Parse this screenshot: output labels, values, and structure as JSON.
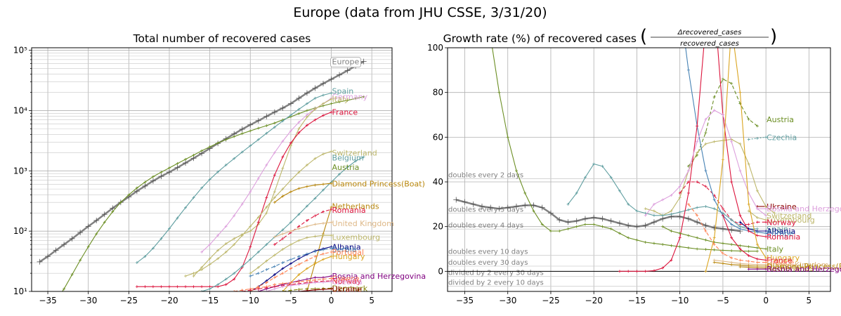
{
  "suptitle": "Europe (data from JHU CSSE, 3/31/20)",
  "chart_data": [
    {
      "id": "left",
      "type": "line",
      "title": "Total number of recovered cases",
      "yscale": "log",
      "xlim": [
        -37,
        7.5
      ],
      "ylim": [
        10,
        110000
      ],
      "xticks": [
        -35,
        -30,
        -25,
        -20,
        -15,
        -10,
        -5,
        0,
        5
      ],
      "yticks": [
        {
          "v": 10,
          "label": "10¹"
        },
        {
          "v": 100,
          "label": "10²"
        },
        {
          "v": 1000,
          "label": "10³"
        },
        {
          "v": 10000,
          "label": "10⁴"
        },
        {
          "v": 100000,
          "label": "10⁵"
        }
      ],
      "series": [
        {
          "name": "Europe",
          "color": "#808080",
          "width": 2.5,
          "boxed": true,
          "label_y": 65000,
          "x0": -36,
          "values": [
            31,
            38,
            48,
            60,
            75,
            95,
            120,
            150,
            190,
            240,
            300,
            370,
            460,
            560,
            680,
            810,
            950,
            1130,
            1350,
            1620,
            1950,
            2350,
            2850,
            3400,
            4100,
            4900,
            5800,
            6800,
            8000,
            9400,
            11000,
            13000,
            16000,
            19500,
            23500,
            28000,
            33000,
            39000,
            46000,
            55000,
            65000
          ]
        },
        {
          "name": "Austria",
          "color": "#6b8e23",
          "label_y": 1150,
          "x0": -34,
          "values": [
            7,
            11,
            19,
            33,
            55,
            90,
            140,
            210,
            300,
            400,
            520,
            650,
            800,
            950,
            1120,
            1320,
            1550,
            1820,
            2150,
            2500,
            2900,
            3300,
            3700,
            4150,
            4600,
            5100,
            5600,
            6200,
            7000,
            7900,
            8900,
            10000,
            11000,
            12000,
            13000,
            13900,
            14800,
            15800,
            17000
          ]
        },
        {
          "name": "Spain",
          "color": "#5f9ea0",
          "label_y": 21000,
          "x0": -24,
          "values": [
            30,
            38,
            52,
            75,
            110,
            165,
            245,
            360,
            520,
            720,
            960,
            1250,
            1600,
            2050,
            2600,
            3300,
            4200,
            5300,
            6700,
            8400,
            10500,
            13000,
            16000,
            18000,
            19500
          ]
        },
        {
          "name": "Germany",
          "color": "#dda0dd",
          "label_y": 17000,
          "x0": -16,
          "values": [
            45,
            60,
            85,
            120,
            180,
            280,
            450,
            750,
            1250,
            2000,
            3100,
            4600,
            6400,
            8500,
            10700,
            13000,
            16000
          ]
        },
        {
          "name": "Italy",
          "color": "#bdb76b",
          "label_y": 15500,
          "x0": -17,
          "values": [
            18,
            25,
            35,
            48,
            62,
            75,
            88,
            100,
            130,
            200,
            450,
            1100,
            2600,
            5000,
            7800,
            10500,
            13000,
            15500
          ]
        },
        {
          "name": "France",
          "color": "#dc143c",
          "label_y": 9500,
          "x0": -24,
          "values": [
            12,
            12,
            12,
            12,
            12,
            12,
            12,
            12,
            12,
            12,
            12,
            13,
            16,
            25,
            55,
            140,
            360,
            850,
            1700,
            2900,
            4300,
            5700,
            7000,
            8300,
            9400
          ]
        },
        {
          "name": "Switzerland",
          "color": "#bdb76b",
          "label_y": 2000,
          "x0": -18,
          "values": [
            18,
            20,
            23,
            28,
            35,
            45,
            60,
            85,
            120,
            170,
            250,
            360,
            500,
            700,
            950,
            1250,
            1600,
            1900,
            2100
          ]
        },
        {
          "name": "Belgium",
          "color": "#5f9ea0",
          "label_y": 1650,
          "x0": -16,
          "values": [
            10,
            11,
            13,
            16,
            20,
            26,
            34,
            45,
            60,
            80,
            105,
            140,
            190,
            260,
            350,
            480,
            650,
            880,
            1150,
            1450,
            1700
          ]
        },
        {
          "name": "Diamond Princess(Boat)",
          "color": "#b8860b",
          "label_y": 610,
          "x0": -7,
          "values": [
            300,
            380,
            450,
            510,
            550,
            580,
            600,
            620
          ]
        },
        {
          "name": "Netherlands",
          "color": "#b8860b",
          "label_y": 260,
          "x0": -3,
          "values": [
            10,
            30,
            90,
            250
          ]
        },
        {
          "name": "Romania",
          "color": "#dc143c",
          "dash": "5,3",
          "label_y": 225,
          "x0": -7,
          "values": [
            60,
            75,
            95,
            120,
            150,
            180,
            210,
            230
          ]
        },
        {
          "name": "United Kingdom",
          "color": "#deb887",
          "label_y": 135,
          "x0": -7,
          "values": [
            80,
            90,
            100,
            110,
            120,
            130,
            135,
            140
          ]
        },
        {
          "name": "Luxembourg",
          "color": "#bdb76b",
          "label_y": 80,
          "x0": -10,
          "values": [
            20,
            25,
            32,
            40,
            50,
            60,
            70,
            78,
            82,
            85,
            85
          ]
        },
        {
          "name": "Albania",
          "color": "#000080",
          "label_y": 55,
          "x0": -10,
          "values": [
            10,
            12,
            15,
            19,
            24,
            29,
            35,
            41,
            47,
            51,
            55
          ]
        },
        {
          "name": "Serbia",
          "color": "#4682b4",
          "dash": "5,3",
          "label_y": 50,
          "x0": -10,
          "values": [
            18,
            20,
            23,
            26,
            30,
            34,
            38,
            42,
            46,
            49,
            52
          ]
        },
        {
          "name": "Portugal",
          "color": "#ff7f50",
          "dash": "5,3",
          "label_y": 45,
          "x0": -10,
          "values": [
            10,
            12,
            14,
            17,
            20,
            24,
            28,
            33,
            38,
            42,
            45
          ]
        },
        {
          "name": "Hungary",
          "color": "#daa520",
          "label_y": 38,
          "x0": -6,
          "values": [
            10,
            14,
            19,
            24,
            29,
            34,
            38
          ]
        },
        {
          "name": "Bosnia and Herzegovina",
          "color": "#800080",
          "label_y": 18,
          "x0": -9,
          "values": [
            10,
            11,
            12,
            13,
            14,
            15,
            16,
            17,
            17,
            18
          ]
        },
        {
          "name": "Greece",
          "color": "#ff7f50",
          "dash": "5,3",
          "label_y": 16.5,
          "x0": -12,
          "values": [
            10,
            10.5,
            11,
            11.5,
            12,
            13,
            13.5,
            14,
            14.5,
            15,
            15.5,
            16,
            16.5
          ]
        },
        {
          "name": "Norway",
          "color": "#dc143c",
          "dash": "5,3",
          "label_y": 15,
          "x0": -11,
          "values": [
            10,
            10.5,
            11,
            11.5,
            12,
            12.5,
            13,
            13.5,
            14,
            14.5,
            14.8,
            15
          ]
        },
        {
          "name": "Czechia",
          "color": "#dda0dd",
          "label_y": 14.5,
          "x0": -8,
          "values": [
            10,
            11,
            12,
            12.5,
            13,
            13.5,
            14,
            14.2,
            14.5
          ]
        },
        {
          "name": "Denmark",
          "color": "#808000",
          "dash": "5,3",
          "label_y": 11.3,
          "x0": -6,
          "values": [
            10,
            10.4,
            10.8,
            11,
            11.1,
            11.2,
            11.3
          ]
        },
        {
          "name": "Ukraine",
          "color": "#8b0000",
          "label_y": 11,
          "x0": -4,
          "values": [
            10,
            10.3,
            10.6,
            10.8,
            11
          ]
        }
      ]
    },
    {
      "id": "right",
      "type": "line",
      "title": "Growth rate (%) of recovered cases",
      "title_formula_num": "Δrecovered_cases",
      "title_formula_den": "recovered_cases",
      "xlim": [
        -37,
        7.5
      ],
      "ylim": [
        -9,
        100
      ],
      "xticks": [
        -35,
        -30,
        -25,
        -20,
        -15,
        -10,
        -5,
        0,
        5
      ],
      "yticks": [
        0,
        20,
        40,
        60,
        80,
        100
      ],
      "reference_lines": [
        {
          "label": "doubles every 2 days",
          "y": 41.4
        },
        {
          "label": "doubles every 3 days",
          "y": 26.0
        },
        {
          "label": "doubles every 4 days",
          "y": 18.9
        },
        {
          "label": "doubles every 10 days",
          "y": 7.2
        },
        {
          "label": "doubles every 30 days",
          "y": 2.3
        },
        {
          "label": "divided by 2 every 30 days",
          "y": -2.3
        },
        {
          "label": "divided by 2 every 10 days",
          "y": -6.7
        }
      ],
      "series": [
        {
          "name": "Europe",
          "color": "#808080",
          "width": 2.5,
          "x0": -36,
          "values": [
            32,
            31,
            30,
            29,
            28.5,
            28,
            28.5,
            29,
            29.5,
            29.5,
            28.5,
            26,
            23,
            22,
            22.5,
            23.5,
            24,
            23.5,
            22.5,
            21.5,
            20.5,
            20,
            20.5,
            22,
            23.5,
            24.5,
            24.5,
            23.5,
            22,
            20.5,
            19.5,
            19,
            18.5,
            18
          ]
        },
        {
          "name": "Austria",
          "color": "#6b8e23",
          "label_y": 68,
          "x0": -32,
          "values": [
            105,
            80,
            60,
            45,
            35,
            27,
            21,
            18,
            18,
            19,
            20,
            21,
            21,
            20,
            19,
            17,
            15,
            14,
            13,
            12.5,
            12,
            11.5,
            11,
            10.5,
            10,
            9.8,
            9.6,
            9.4,
            9.2,
            9.1,
            9,
            9
          ]
        },
        {
          "name": "Austria (dashed)",
          "color": "#6b8e23",
          "dash": "5,3",
          "x0": -9,
          "values": [
            47,
            52,
            62,
            78,
            86,
            84,
            75,
            68,
            65
          ]
        },
        {
          "name": "Czechia",
          "color": "#5f9ea0",
          "dash": "2,2",
          "label_y": 60,
          "x0": -2,
          "values": [
            59,
            59.5,
            60
          ]
        },
        {
          "name": "Ukraine",
          "color": "#8b0000",
          "label_y": 29,
          "x0": -1,
          "values": [
            29,
            29
          ]
        },
        {
          "name": "Bosnia and Herzegovina",
          "color": "#dda0dd",
          "label_y": 28,
          "x0": -1,
          "values": [
            28,
            28
          ]
        },
        {
          "name": "Switzerland",
          "color": "#bdb76b",
          "label_y": 25,
          "x0": -14,
          "values": [
            28,
            27,
            25,
            27,
            33,
            45,
            53,
            57,
            58,
            58.5,
            59,
            57,
            48,
            36,
            29,
            26
          ]
        },
        {
          "name": "Luxembourg",
          "color": "#bdb76b",
          "label_y": 23,
          "x0": -2,
          "values": [
            27,
            24,
            23
          ]
        },
        {
          "name": "Norway",
          "color": "#dc143c",
          "dash": "5,3",
          "label_y": 22,
          "x0": -10,
          "values": [
            35,
            40,
            40,
            38,
            34,
            28,
            23,
            21,
            21,
            22,
            22
          ]
        },
        {
          "name": "Spain",
          "color": "#5f9ea0",
          "label_y": 19,
          "x0": -23,
          "values": [
            30,
            35,
            42,
            48,
            47,
            42,
            36,
            30,
            27,
            26,
            25,
            25,
            25.5,
            26.5,
            27.5,
            28.5,
            29,
            28,
            26,
            23,
            20,
            19,
            19
          ]
        },
        {
          "name": "Albania",
          "color": "#000080",
          "label_y": 18,
          "x0": -3,
          "values": [
            22,
            19,
            18,
            18
          ]
        },
        {
          "name": "Europe",
          "color": "#4682b4",
          "label_y": 17,
          "x0": -10,
          "values": [
            120,
            90,
            65,
            45,
            32,
            25,
            21,
            19,
            18,
            17.5,
            17
          ]
        },
        {
          "name": "Romania",
          "color": "#dc143c",
          "label_y": 15.5,
          "x0": -17,
          "values": [
            0,
            0,
            0,
            0,
            0.3,
            1.5,
            5,
            15,
            35,
            65,
            110,
            120,
            70,
            40,
            25,
            18,
            16,
            15.5
          ]
        },
        {
          "name": "Germany",
          "color": "#dda0dd",
          "x0": -14,
          "values": [
            25,
            30,
            32,
            34,
            38,
            45,
            58,
            68,
            72,
            70,
            58,
            45,
            35,
            28,
            25
          ]
        },
        {
          "name": "Italy",
          "color": "#6b8e23",
          "label_y": 10,
          "x0": -12,
          "values": [
            20,
            18,
            17,
            16,
            15,
            14,
            13,
            12.5,
            12,
            11.5,
            11,
            10.5,
            10
          ]
        },
        {
          "name": "Hungary",
          "color": "#daa520",
          "label_y": 6,
          "x0": -7,
          "values": [
            0,
            15,
            50,
            110,
            80,
            30,
            12,
            6
          ]
        },
        {
          "name": "France",
          "color": "#dc143c",
          "label_y": 5,
          "x0": -5,
          "values": [
            25,
            15,
            10,
            7,
            5.5,
            5
          ]
        },
        {
          "name": "Greece",
          "color": "#ff7f50",
          "dash": "5,3",
          "label_y": 4,
          "x0": -9,
          "values": [
            30,
            25,
            18,
            12,
            8,
            6,
            5,
            4.5,
            4,
            4
          ]
        },
        {
          "name": "United Kingdom",
          "color": "#deb887",
          "label_y": 3,
          "x0": -6,
          "values": [
            5,
            4.5,
            4,
            3.5,
            3.2,
            3,
            3
          ]
        },
        {
          "name": "Diamond Princess(Boat)",
          "color": "#b8860b",
          "label_y": 2.3,
          "x0": -6,
          "values": [
            4,
            3.5,
            3,
            2.8,
            2.5,
            2.3,
            2.3
          ]
        },
        {
          "name": "Netherlands",
          "color": "#b8860b",
          "label_y": 1.5,
          "x0": -3,
          "values": [
            2,
            1.8,
            1.6,
            1.5
          ]
        },
        {
          "name": "Bosnia and Herzegovina",
          "color": "#800080",
          "label_y": 1,
          "x0": -2,
          "values": [
            1,
            1,
            1
          ]
        }
      ]
    }
  ]
}
